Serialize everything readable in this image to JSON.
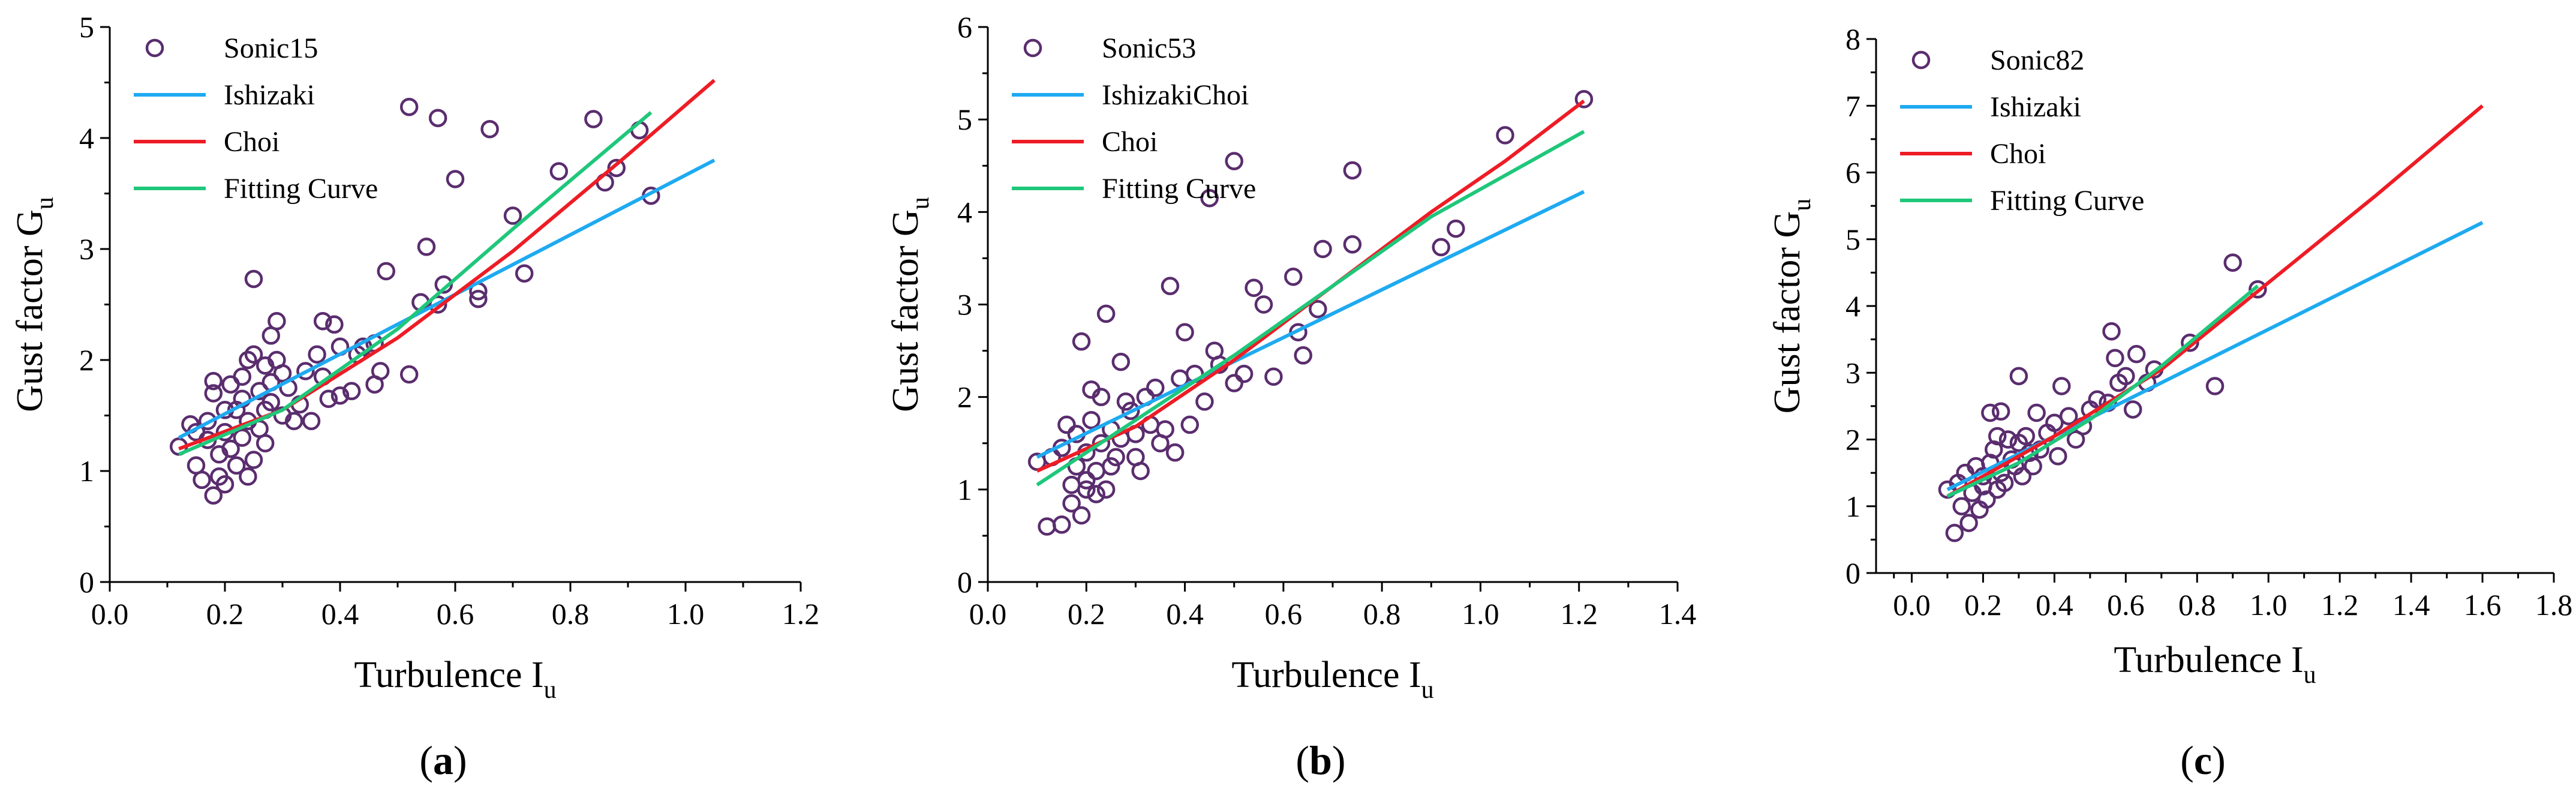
{
  "figure": {
    "panel_captions": [
      "(a)",
      "(b)",
      "(c)"
    ]
  },
  "colors": {
    "scatter": "#5a2d6e",
    "ishizaki": "#1eaaf1",
    "choi": "#ee1c25",
    "fitting": "#1fc77b",
    "axis": "#000000"
  },
  "chart_data": [
    {
      "type": "scatter",
      "panel": "a",
      "caption_letter": "a",
      "xlabel": "Turbulence I",
      "xlabel_sub": "u",
      "ylabel": "Gust factor G",
      "ylabel_sub": "u",
      "xlim": [
        0,
        1.2
      ],
      "ylim": [
        0,
        5
      ],
      "xticks": [
        0.0,
        0.2,
        0.4,
        0.6,
        0.8,
        1.0,
        1.2
      ],
      "xtick_labels": [
        "0.0",
        "0.2",
        "0.4",
        "0.6",
        "0.8",
        "1.0",
        "1.2"
      ],
      "yticks": [
        0,
        1,
        2,
        3,
        4,
        5
      ],
      "ytick_labels": [
        "0",
        "1",
        "2",
        "3",
        "4",
        "5"
      ],
      "legend": [
        "Sonic15",
        "Ishizaki",
        "Choi",
        "Fitting Curve"
      ],
      "scatter_points": [
        [
          0.12,
          1.22
        ],
        [
          0.14,
          1.42
        ],
        [
          0.15,
          1.05
        ],
        [
          0.15,
          1.35
        ],
        [
          0.16,
          0.92
        ],
        [
          0.17,
          1.28
        ],
        [
          0.17,
          1.45
        ],
        [
          0.18,
          0.78
        ],
        [
          0.18,
          1.7
        ],
        [
          0.18,
          1.81
        ],
        [
          0.19,
          0.95
        ],
        [
          0.19,
          1.15
        ],
        [
          0.2,
          1.35
        ],
        [
          0.2,
          1.55
        ],
        [
          0.2,
          0.88
        ],
        [
          0.21,
          1.2
        ],
        [
          0.21,
          1.78
        ],
        [
          0.22,
          1.55
        ],
        [
          0.22,
          1.05
        ],
        [
          0.23,
          1.3
        ],
        [
          0.23,
          1.65
        ],
        [
          0.23,
          1.85
        ],
        [
          0.24,
          2.0
        ],
        [
          0.24,
          1.45
        ],
        [
          0.24,
          0.95
        ],
        [
          0.25,
          1.1
        ],
        [
          0.25,
          2.05
        ],
        [
          0.25,
          2.73
        ],
        [
          0.26,
          1.72
        ],
        [
          0.26,
          1.38
        ],
        [
          0.27,
          1.95
        ],
        [
          0.27,
          1.55
        ],
        [
          0.27,
          1.25
        ],
        [
          0.28,
          1.8
        ],
        [
          0.28,
          1.62
        ],
        [
          0.28,
          2.22
        ],
        [
          0.29,
          2.0
        ],
        [
          0.29,
          2.35
        ],
        [
          0.3,
          1.5
        ],
        [
          0.3,
          1.88
        ],
        [
          0.31,
          1.75
        ],
        [
          0.32,
          1.45
        ],
        [
          0.33,
          1.6
        ],
        [
          0.34,
          1.9
        ],
        [
          0.35,
          1.45
        ],
        [
          0.36,
          2.05
        ],
        [
          0.37,
          1.85
        ],
        [
          0.37,
          2.35
        ],
        [
          0.38,
          1.65
        ],
        [
          0.39,
          2.32
        ],
        [
          0.4,
          1.68
        ],
        [
          0.4,
          2.12
        ],
        [
          0.42,
          1.72
        ],
        [
          0.43,
          2.05
        ],
        [
          0.44,
          2.12
        ],
        [
          0.46,
          1.78
        ],
        [
          0.46,
          2.15
        ],
        [
          0.47,
          1.9
        ],
        [
          0.48,
          2.8
        ],
        [
          0.52,
          4.28
        ],
        [
          0.52,
          1.87
        ],
        [
          0.54,
          2.52
        ],
        [
          0.55,
          3.02
        ],
        [
          0.57,
          2.5
        ],
        [
          0.57,
          4.18
        ],
        [
          0.58,
          2.68
        ],
        [
          0.6,
          3.63
        ],
        [
          0.64,
          2.55
        ],
        [
          0.64,
          2.62
        ],
        [
          0.66,
          4.08
        ],
        [
          0.7,
          3.3
        ],
        [
          0.72,
          2.78
        ],
        [
          0.78,
          3.7
        ],
        [
          0.84,
          4.17
        ],
        [
          0.86,
          3.6
        ],
        [
          0.88,
          3.73
        ],
        [
          0.92,
          4.07
        ],
        [
          0.94,
          3.48
        ]
      ],
      "ishizaki_line": [
        [
          0.12,
          1.3
        ],
        [
          1.05,
          3.8
        ]
      ],
      "choi_curve": [
        [
          0.12,
          1.2
        ],
        [
          0.3,
          1.55
        ],
        [
          0.5,
          2.2
        ],
        [
          0.7,
          2.98
        ],
        [
          0.9,
          3.85
        ],
        [
          1.05,
          4.52
        ]
      ],
      "fitting_curve": [
        [
          0.12,
          1.15
        ],
        [
          0.3,
          1.55
        ],
        [
          0.5,
          2.28
        ],
        [
          0.7,
          3.18
        ],
        [
          0.94,
          4.23
        ]
      ]
    },
    {
      "type": "scatter",
      "panel": "b",
      "caption_letter": "b",
      "xlabel": "Turbulence I",
      "xlabel_sub": "u",
      "ylabel": "Gust factor G",
      "ylabel_sub": "u",
      "xlim": [
        0,
        1.4
      ],
      "ylim": [
        0,
        6
      ],
      "xticks": [
        0.0,
        0.2,
        0.4,
        0.6,
        0.8,
        1.0,
        1.2,
        1.4
      ],
      "xtick_labels": [
        "0.0",
        "0.2",
        "0.4",
        "0.6",
        "0.8",
        "1.0",
        "1.2",
        "1.4"
      ],
      "yticks": [
        0,
        1,
        2,
        3,
        4,
        5,
        6
      ],
      "ytick_labels": [
        "0",
        "1",
        "2",
        "3",
        "4",
        "5",
        "6"
      ],
      "legend": [
        "Sonic53",
        "IshizakiChoi",
        "Choi",
        "Fitting Curve"
      ],
      "scatter_points": [
        [
          0.1,
          1.3
        ],
        [
          0.12,
          0.6
        ],
        [
          0.13,
          1.35
        ],
        [
          0.15,
          0.62
        ],
        [
          0.15,
          1.45
        ],
        [
          0.16,
          1.7
        ],
        [
          0.17,
          0.85
        ],
        [
          0.17,
          1.05
        ],
        [
          0.18,
          1.25
        ],
        [
          0.18,
          1.6
        ],
        [
          0.19,
          0.72
        ],
        [
          0.19,
          2.6
        ],
        [
          0.2,
          1.1
        ],
        [
          0.2,
          1.4
        ],
        [
          0.2,
          1.0
        ],
        [
          0.21,
          1.75
        ],
        [
          0.21,
          2.08
        ],
        [
          0.22,
          1.2
        ],
        [
          0.22,
          0.95
        ],
        [
          0.23,
          1.5
        ],
        [
          0.23,
          2.0
        ],
        [
          0.24,
          2.9
        ],
        [
          0.24,
          1.0
        ],
        [
          0.25,
          1.25
        ],
        [
          0.25,
          1.65
        ],
        [
          0.26,
          1.35
        ],
        [
          0.27,
          2.38
        ],
        [
          0.27,
          1.55
        ],
        [
          0.28,
          1.95
        ],
        [
          0.29,
          1.85
        ],
        [
          0.3,
          1.35
        ],
        [
          0.3,
          1.6
        ],
        [
          0.31,
          1.2
        ],
        [
          0.32,
          2.0
        ],
        [
          0.33,
          1.7
        ],
        [
          0.34,
          2.1
        ],
        [
          0.35,
          1.5
        ],
        [
          0.36,
          1.65
        ],
        [
          0.37,
          3.2
        ],
        [
          0.38,
          1.4
        ],
        [
          0.39,
          2.2
        ],
        [
          0.4,
          2.7
        ],
        [
          0.41,
          1.7
        ],
        [
          0.42,
          2.25
        ],
        [
          0.44,
          1.95
        ],
        [
          0.45,
          4.15
        ],
        [
          0.46,
          2.5
        ],
        [
          0.47,
          2.35
        ],
        [
          0.5,
          2.15
        ],
        [
          0.5,
          4.55
        ],
        [
          0.52,
          2.25
        ],
        [
          0.54,
          3.18
        ],
        [
          0.56,
          3.0
        ],
        [
          0.58,
          2.22
        ],
        [
          0.62,
          3.3
        ],
        [
          0.63,
          2.7
        ],
        [
          0.64,
          2.45
        ],
        [
          0.67,
          2.95
        ],
        [
          0.68,
          3.6
        ],
        [
          0.74,
          4.45
        ],
        [
          0.74,
          3.65
        ],
        [
          0.92,
          3.62
        ],
        [
          0.95,
          3.82
        ],
        [
          1.05,
          4.83
        ],
        [
          1.21,
          5.22
        ]
      ],
      "ishizaki_line": [
        [
          0.1,
          1.35
        ],
        [
          1.21,
          4.22
        ]
      ],
      "choi_curve": [
        [
          0.1,
          1.2
        ],
        [
          0.3,
          1.68
        ],
        [
          0.5,
          2.4
        ],
        [
          0.7,
          3.2
        ],
        [
          0.9,
          4.0
        ],
        [
          1.05,
          4.55
        ],
        [
          1.21,
          5.2
        ]
      ],
      "fitting_curve": [
        [
          0.1,
          1.05
        ],
        [
          0.3,
          1.75
        ],
        [
          0.5,
          2.45
        ],
        [
          0.7,
          3.2
        ],
        [
          0.9,
          3.95
        ],
        [
          1.21,
          4.87
        ]
      ]
    },
    {
      "type": "scatter",
      "panel": "c",
      "caption_letter": "c",
      "xlabel": "Turbulence I",
      "xlabel_sub": "u",
      "ylabel": "Gust factor G",
      "ylabel_sub": "u",
      "xlim": [
        -0.1,
        1.8
      ],
      "ylim": [
        0,
        8
      ],
      "xticks": [
        0.0,
        0.2,
        0.4,
        0.6,
        0.8,
        1.0,
        1.2,
        1.4,
        1.6,
        1.8
      ],
      "xtick_labels": [
        "0.0",
        "0.2",
        "0.4",
        "0.6",
        "0.8",
        "1.0",
        "1.2",
        "1.4",
        "1.6",
        "1.8"
      ],
      "yticks": [
        0,
        1,
        2,
        3,
        4,
        5,
        6,
        7,
        8
      ],
      "ytick_labels": [
        "0",
        "1",
        "2",
        "3",
        "4",
        "5",
        "6",
        "7",
        "8"
      ],
      "legend": [
        "Sonic82",
        "Ishizaki",
        "Choi",
        "Fitting Curve"
      ],
      "scatter_points": [
        [
          0.1,
          1.25
        ],
        [
          0.12,
          0.6
        ],
        [
          0.13,
          1.35
        ],
        [
          0.14,
          1.0
        ],
        [
          0.15,
          1.5
        ],
        [
          0.16,
          0.75
        ],
        [
          0.17,
          1.2
        ],
        [
          0.18,
          1.6
        ],
        [
          0.19,
          0.95
        ],
        [
          0.2,
          1.3
        ],
        [
          0.2,
          1.45
        ],
        [
          0.21,
          1.1
        ],
        [
          0.22,
          2.4
        ],
        [
          0.22,
          1.65
        ],
        [
          0.23,
          1.85
        ],
        [
          0.24,
          2.05
        ],
        [
          0.24,
          1.25
        ],
        [
          0.25,
          2.42
        ],
        [
          0.25,
          1.5
        ],
        [
          0.26,
          1.35
        ],
        [
          0.27,
          2.0
        ],
        [
          0.28,
          1.7
        ],
        [
          0.29,
          1.6
        ],
        [
          0.3,
          1.95
        ],
        [
          0.3,
          2.95
        ],
        [
          0.31,
          1.45
        ],
        [
          0.32,
          2.05
        ],
        [
          0.33,
          1.8
        ],
        [
          0.34,
          1.6
        ],
        [
          0.35,
          2.4
        ],
        [
          0.36,
          1.85
        ],
        [
          0.38,
          2.1
        ],
        [
          0.4,
          2.25
        ],
        [
          0.41,
          1.75
        ],
        [
          0.42,
          2.8
        ],
        [
          0.44,
          2.35
        ],
        [
          0.46,
          2.0
        ],
        [
          0.48,
          2.2
        ],
        [
          0.5,
          2.45
        ],
        [
          0.52,
          2.6
        ],
        [
          0.55,
          2.55
        ],
        [
          0.56,
          3.62
        ],
        [
          0.57,
          3.22
        ],
        [
          0.58,
          2.85
        ],
        [
          0.6,
          2.95
        ],
        [
          0.62,
          2.45
        ],
        [
          0.63,
          3.28
        ],
        [
          0.66,
          2.85
        ],
        [
          0.68,
          3.05
        ],
        [
          0.78,
          3.45
        ],
        [
          0.85,
          2.8
        ],
        [
          0.9,
          4.65
        ],
        [
          0.97,
          4.25
        ]
      ],
      "ishizaki_line": [
        [
          0.1,
          1.25
        ],
        [
          1.6,
          5.25
        ]
      ],
      "choi_curve": [
        [
          0.1,
          1.15
        ],
        [
          0.4,
          2.05
        ],
        [
          0.7,
          3.05
        ],
        [
          1.0,
          4.35
        ],
        [
          1.3,
          5.65
        ],
        [
          1.6,
          7.0
        ]
      ],
      "fitting_curve": [
        [
          0.1,
          1.15
        ],
        [
          0.3,
          1.65
        ],
        [
          0.5,
          2.3
        ],
        [
          0.7,
          3.1
        ],
        [
          0.97,
          4.3
        ]
      ]
    }
  ]
}
